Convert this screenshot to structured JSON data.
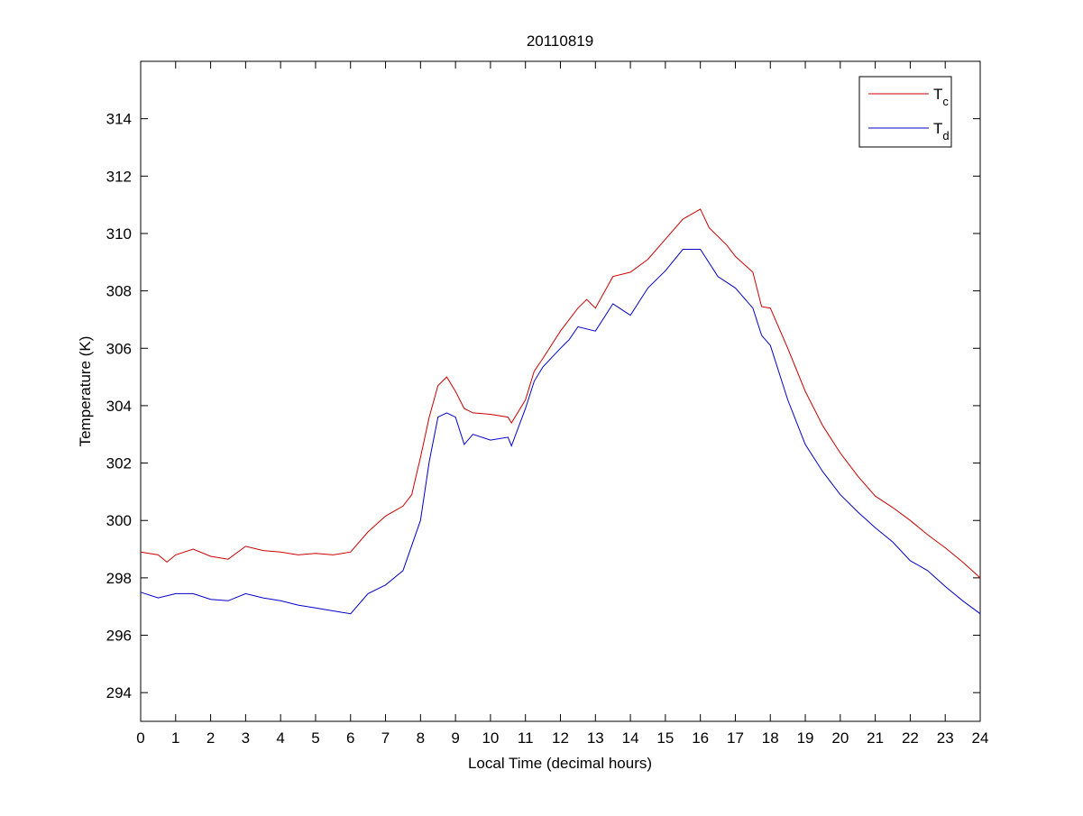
{
  "chart_data": {
    "type": "line",
    "title": "20110819",
    "xlabel": "Local Time (decimal hours)",
    "ylabel": "Temperature (K)",
    "xlim": [
      0,
      24
    ],
    "ylim": [
      293,
      316
    ],
    "xticks": [
      0,
      1,
      2,
      3,
      4,
      5,
      6,
      7,
      8,
      9,
      10,
      11,
      12,
      13,
      14,
      15,
      16,
      17,
      18,
      19,
      20,
      21,
      22,
      23,
      24
    ],
    "yticks": [
      294,
      296,
      298,
      300,
      302,
      304,
      306,
      308,
      310,
      312,
      314
    ],
    "grid": false,
    "legend_placement": "top-right",
    "series": [
      {
        "name": "T",
        "subscript": "c",
        "color": "#cc0000",
        "x": [
          0,
          0.5,
          0.75,
          1,
          1.5,
          2,
          2.5,
          3,
          3.5,
          4,
          4.5,
          5,
          5.5,
          6,
          6.5,
          7,
          7.5,
          7.75,
          8,
          8.25,
          8.5,
          8.75,
          9,
          9.25,
          9.5,
          10,
          10.5,
          10.6,
          11,
          11.25,
          11.5,
          12,
          12.5,
          12.75,
          13,
          13.5,
          14,
          14.5,
          15,
          15.5,
          16,
          16.25,
          16.75,
          17,
          17.5,
          17.75,
          18,
          18.5,
          19,
          19.5,
          20,
          20.5,
          21,
          21.5,
          22,
          22.5,
          23,
          23.5,
          24
        ],
        "y": [
          298.9,
          298.8,
          298.55,
          298.8,
          299.0,
          298.75,
          298.65,
          299.1,
          298.95,
          298.9,
          298.8,
          298.85,
          298.8,
          298.9,
          299.6,
          300.15,
          300.5,
          300.9,
          302.2,
          303.6,
          304.7,
          305.0,
          304.5,
          303.9,
          303.75,
          303.7,
          303.6,
          303.4,
          304.2,
          305.2,
          305.65,
          306.6,
          307.4,
          307.7,
          307.4,
          308.5,
          308.65,
          309.1,
          309.8,
          310.5,
          310.85,
          310.2,
          309.6,
          309.2,
          308.65,
          307.45,
          307.4,
          306.0,
          304.5,
          303.3,
          302.35,
          301.55,
          300.85,
          300.45,
          300.0,
          299.5,
          299.05,
          298.55,
          298.0
        ]
      },
      {
        "name": "T",
        "subscript": "d",
        "color": "#0000cc",
        "x": [
          0,
          0.5,
          1,
          1.5,
          2,
          2.5,
          3,
          3.5,
          4,
          4.5,
          5,
          5.5,
          6,
          6.5,
          7,
          7.5,
          8,
          8.25,
          8.5,
          8.75,
          9,
          9.25,
          9.5,
          10,
          10.5,
          10.6,
          11,
          11.25,
          11.5,
          12,
          12.25,
          12.5,
          13,
          13.5,
          14,
          14.5,
          15,
          15.5,
          16,
          16.5,
          17,
          17.5,
          17.75,
          18,
          18.5,
          19,
          19.5,
          20,
          20.5,
          21,
          21.5,
          22,
          22.5,
          23,
          23.5,
          24
        ],
        "y": [
          297.5,
          297.3,
          297.45,
          297.45,
          297.25,
          297.2,
          297.45,
          297.3,
          297.2,
          297.05,
          296.95,
          296.85,
          296.75,
          297.45,
          297.75,
          298.25,
          300.0,
          302.05,
          303.6,
          303.75,
          303.6,
          302.65,
          303.0,
          302.8,
          302.9,
          302.6,
          303.9,
          304.85,
          305.35,
          306.0,
          306.3,
          306.75,
          306.6,
          307.55,
          307.15,
          308.1,
          308.7,
          309.45,
          309.45,
          308.5,
          308.1,
          307.4,
          306.45,
          306.1,
          304.2,
          302.65,
          301.7,
          300.9,
          300.3,
          299.75,
          299.25,
          298.6,
          298.25,
          297.7,
          297.2,
          296.75
        ]
      }
    ]
  }
}
